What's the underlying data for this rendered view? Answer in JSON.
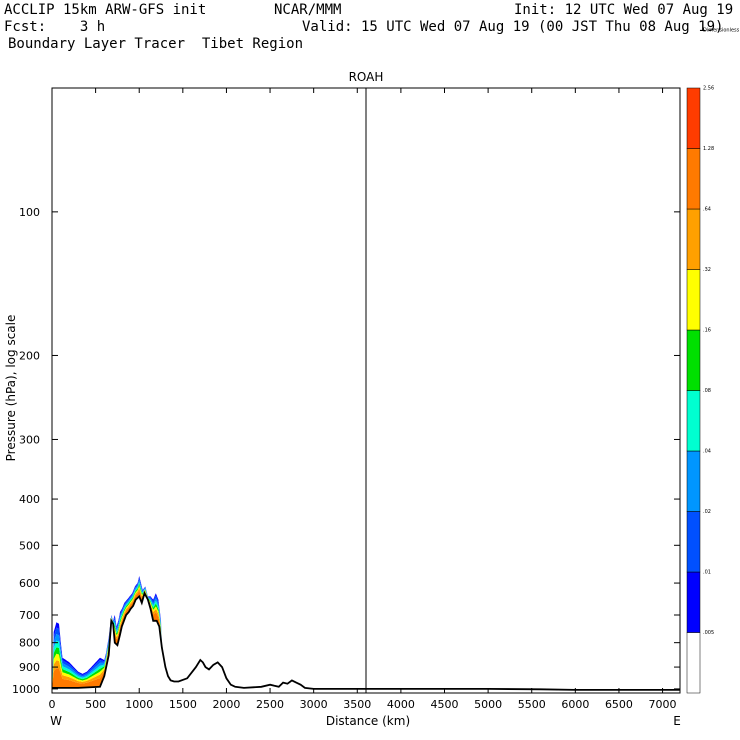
{
  "header": {
    "model": "ACCLIP 15km ARW-GFS init",
    "org": "NCAR/MMM",
    "init": "Init: 12 UTC Wed 07 Aug 19",
    "fcst": "Fcst:    3 h",
    "valid": "Valid: 15 UTC Wed 07 Aug 19 (00 JST Thu 08 Aug 19)",
    "field": "Boundary Layer Tracer  Tibet Region"
  },
  "chart_data": {
    "type": "area",
    "title": "ROAH",
    "xlabel": "Distance (km)",
    "ylabel": "Pressure (hPa), log scale",
    "xlim": [
      0,
      7200
    ],
    "ylim": [
      1020,
      55
    ],
    "yscale": "log",
    "x_ticks": [
      0,
      500,
      1000,
      1500,
      2000,
      2500,
      3000,
      3500,
      4000,
      4500,
      5000,
      5500,
      6000,
      6500,
      7000
    ],
    "y_ticks": [
      100,
      200,
      300,
      400,
      500,
      600,
      700,
      800,
      900,
      1000
    ],
    "left_end_label": "W",
    "right_end_label": "E",
    "marker_line_x": 3600,
    "terrain": {
      "x": [
        0,
        300,
        550,
        600,
        650,
        680,
        700,
        720,
        750,
        780,
        800,
        850,
        880,
        900,
        930,
        960,
        1000,
        1030,
        1060,
        1100,
        1130,
        1160,
        1200,
        1230,
        1260,
        1300,
        1330,
        1360,
        1400,
        1450,
        1550,
        1650,
        1700,
        1730,
        1760,
        1800,
        1850,
        1900,
        1950,
        2000,
        2050,
        2100,
        2200,
        2400,
        2500,
        2550,
        2600,
        2650,
        2700,
        2750,
        2800,
        2850,
        2900,
        3000,
        4000,
        5000,
        5600,
        6000,
        7200
      ],
      "p": [
        995,
        995,
        990,
        940,
        850,
        720,
        730,
        800,
        810,
        770,
        740,
        700,
        690,
        680,
        670,
        650,
        640,
        660,
        630,
        650,
        680,
        720,
        720,
        740,
        820,
        900,
        940,
        960,
        965,
        965,
        950,
        900,
        870,
        880,
        900,
        910,
        890,
        880,
        900,
        950,
        980,
        990,
        995,
        990,
        980,
        985,
        990,
        970,
        975,
        960,
        970,
        980,
        995,
        1000,
        1000,
        1000,
        1002,
        1005,
        1005
      ]
    },
    "tracer_top": {
      "x": [
        0,
        20,
        50,
        80,
        120,
        160,
        200,
        250,
        300,
        350,
        400,
        450,
        500,
        550,
        600,
        620,
        650,
        680,
        700,
        720,
        740,
        760,
        780,
        800,
        830,
        860,
        890,
        920,
        950,
        980,
        1000,
        1020,
        1040,
        1070,
        1100,
        1130,
        1160,
        1190,
        1220,
        1250,
        1280
      ],
      "p": [
        990,
        760,
        725,
        730,
        860,
        870,
        880,
        900,
        920,
        930,
        920,
        900,
        880,
        860,
        870,
        840,
        780,
        700,
        720,
        700,
        740,
        720,
        690,
        680,
        660,
        650,
        640,
        630,
        610,
        600,
        580,
        600,
        620,
        610,
        640,
        640,
        650,
        630,
        650,
        720,
        990
      ]
    },
    "colorbar": {
      "levels": [
        "",
        ".005",
        ".01",
        ".02",
        ".04",
        ".08",
        ".16",
        ".32",
        ".64",
        "1.28",
        "2.56",
        "Dimensionless"
      ],
      "colors": [
        "#ffffff",
        "#0000ff",
        "#0050ff",
        "#0096ff",
        "#00ffd0",
        "#00e000",
        "#ffff00",
        "#ffa000",
        "#ff7a00",
        "#ff3c00"
      ]
    }
  }
}
